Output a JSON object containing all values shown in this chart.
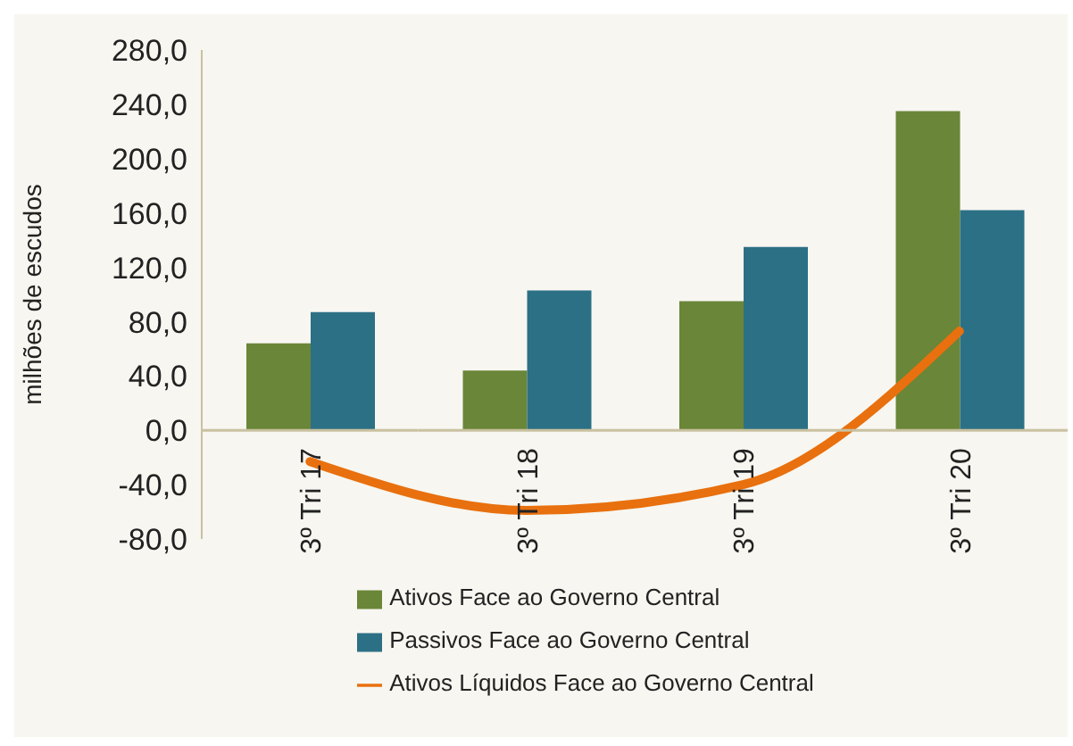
{
  "chart_data": {
    "type": "bar",
    "ylabel": "milhões de escudos",
    "categories": [
      "3º Tri 17",
      "3º Tri 18",
      "3º Tri 19",
      "3º Tri 20"
    ],
    "series": [
      {
        "name": "Ativos Face ao Governo Central",
        "color": "#6a8638",
        "values": [
          64,
          44,
          95,
          235
        ]
      },
      {
        "name": "Passivos Face ao Governo Central",
        "color": "#2c7086",
        "values": [
          87,
          103,
          135,
          162
        ]
      },
      {
        "name": "Ativos Líquidos Face ao Governo Central",
        "type": "line",
        "color": "#e8700e",
        "values": [
          -23,
          -59,
          -40,
          73
        ]
      }
    ],
    "ylim": [
      -80,
      280
    ],
    "yticks": [
      {
        "value": -80,
        "label": "-80,0"
      },
      {
        "value": -40,
        "label": "-40,0"
      },
      {
        "value": 0,
        "label": "0,0"
      },
      {
        "value": 40,
        "label": "40,0"
      },
      {
        "value": 80,
        "label": "80,0"
      },
      {
        "value": 120,
        "label": "120,0"
      },
      {
        "value": 160,
        "label": "160,0"
      },
      {
        "value": 200,
        "label": "200,0"
      },
      {
        "value": 240,
        "label": "240,0"
      },
      {
        "value": 280,
        "label": "280,0"
      }
    ],
    "grid": false,
    "legend": "bottom"
  }
}
